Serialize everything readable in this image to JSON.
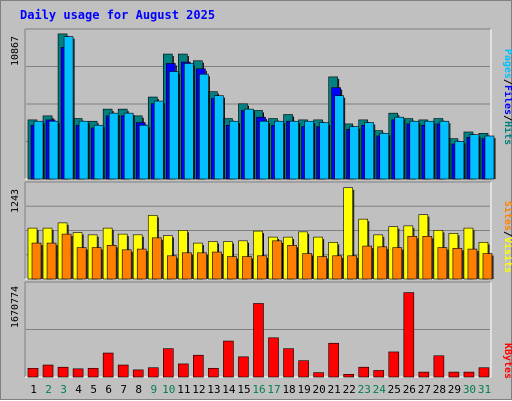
{
  "title": "Daily usage for August 2025",
  "chart_data": [
    {
      "type": "bar",
      "panel": "hits",
      "ymax_label": "10867",
      "ylim": [
        0,
        10867
      ],
      "categories": [
        "1",
        "2",
        "3",
        "4",
        "5",
        "6",
        "7",
        "8",
        "9",
        "10",
        "11",
        "12",
        "13",
        "14",
        "15",
        "16",
        "17",
        "18",
        "19",
        "20",
        "21",
        "22",
        "23",
        "24",
        "25",
        "26",
        "27",
        "28",
        "29",
        "30",
        "31"
      ],
      "legend": [
        {
          "label": "Hits",
          "color": "#008080"
        },
        {
          "label": "Files",
          "color": "#0000ff"
        },
        {
          "label": "Pages",
          "color": "#00c0ff"
        }
      ],
      "series": [
        {
          "name": "Hits",
          "color": "#008080",
          "values": [
            4400,
            4700,
            10800,
            4500,
            4300,
            5200,
            5200,
            4700,
            6100,
            9300,
            9300,
            8800,
            6500,
            4500,
            5600,
            5100,
            4500,
            4800,
            4400,
            4400,
            7600,
            4100,
            4400,
            3600,
            4900,
            4500,
            4400,
            4500,
            3000,
            3500,
            3400
          ]
        },
        {
          "name": "Files",
          "color": "#0000ff",
          "values": [
            4000,
            4400,
            9800,
            4000,
            3800,
            4700,
            4700,
            4200,
            5600,
            8600,
            8700,
            8200,
            6000,
            4000,
            5100,
            4600,
            4000,
            4300,
            3900,
            3900,
            6800,
            3700,
            4000,
            3200,
            4400,
            4100,
            4000,
            4100,
            2600,
            3100,
            3000
          ]
        },
        {
          "name": "Pages",
          "color": "#00c0ff",
          "values": [
            4300,
            4300,
            10600,
            4300,
            4000,
            4900,
            4900,
            4000,
            5800,
            8000,
            8600,
            7800,
            6200,
            4300,
            5200,
            4300,
            4300,
            4300,
            4300,
            4200,
            6200,
            3900,
            4200,
            3400,
            4600,
            4300,
            4300,
            4300,
            2800,
            3300,
            3200
          ]
        }
      ]
    },
    {
      "type": "bar",
      "panel": "visits",
      "ymax_label": "1243",
      "ylim": [
        0,
        1243
      ],
      "categories": [
        "1",
        "2",
        "3",
        "4",
        "5",
        "6",
        "7",
        "8",
        "9",
        "10",
        "11",
        "12",
        "13",
        "14",
        "15",
        "16",
        "17",
        "18",
        "19",
        "20",
        "21",
        "22",
        "23",
        "24",
        "25",
        "26",
        "27",
        "28",
        "29",
        "30",
        "31"
      ],
      "legend": [
        {
          "label": "Visits",
          "color": "#ffff00"
        },
        {
          "label": "Sites",
          "color": "#ff8000"
        }
      ],
      "series": [
        {
          "name": "Visits",
          "color": "#ffff00",
          "values": [
            680,
            680,
            750,
            620,
            590,
            680,
            600,
            590,
            850,
            580,
            650,
            480,
            500,
            500,
            510,
            640,
            560,
            560,
            630,
            560,
            490,
            1220,
            800,
            590,
            700,
            710,
            860,
            650,
            610,
            680,
            490
          ]
        },
        {
          "name": "Sites",
          "color": "#ff8000",
          "values": [
            480,
            480,
            600,
            420,
            420,
            450,
            390,
            400,
            550,
            310,
            350,
            350,
            360,
            300,
            300,
            310,
            510,
            450,
            340,
            300,
            310,
            310,
            440,
            430,
            420,
            570,
            570,
            420,
            410,
            400,
            340
          ]
        }
      ]
    },
    {
      "type": "bar",
      "panel": "kbytes",
      "ymax_label": "1670774",
      "ylim": [
        0,
        1670774
      ],
      "categories": [
        "1",
        "2",
        "3",
        "4",
        "5",
        "6",
        "7",
        "8",
        "9",
        "10",
        "11",
        "12",
        "13",
        "14",
        "15",
        "16",
        "17",
        "18",
        "19",
        "20",
        "21",
        "22",
        "23",
        "24",
        "25",
        "26",
        "27",
        "28",
        "29",
        "30",
        "31"
      ],
      "legend": [
        {
          "label": "KBytes",
          "color": "#ff0000"
        }
      ],
      "series": [
        {
          "name": "KBytes",
          "color": "#ff0000",
          "values": [
            160000,
            220000,
            180000,
            150000,
            160000,
            440000,
            220000,
            130000,
            170000,
            520000,
            240000,
            400000,
            160000,
            660000,
            370000,
            1350000,
            720000,
            520000,
            300000,
            80000,
            620000,
            50000,
            180000,
            120000,
            460000,
            1550000,
            90000,
            390000,
            90000,
            90000,
            170000
          ]
        }
      ]
    }
  ],
  "weekend_days": [
    2,
    3,
    9,
    10,
    16,
    17,
    23,
    24,
    30,
    31
  ],
  "colors": {
    "background": "#c0c0c0",
    "plot_background": "#c0c0c0",
    "grid": "#808080",
    "title": "#0000ff",
    "weekday_label": "#000000",
    "weekend_label": "#00804c"
  }
}
